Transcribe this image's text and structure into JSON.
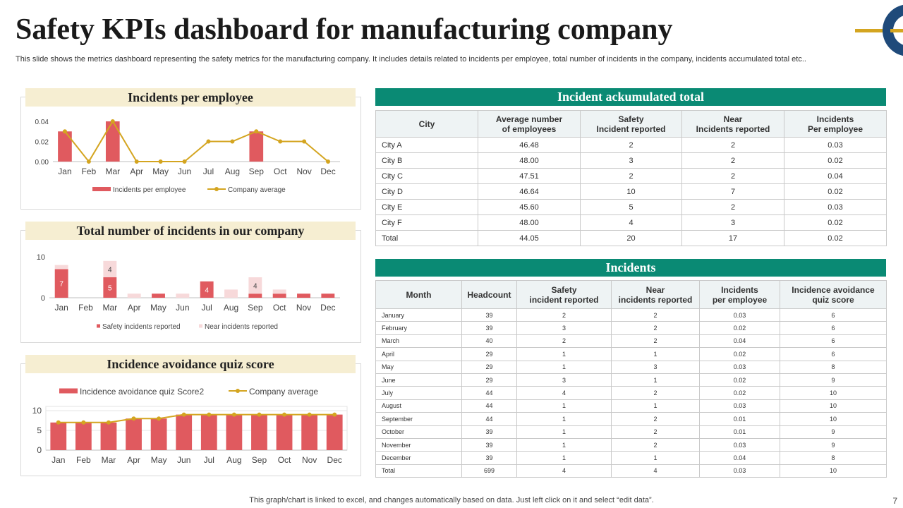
{
  "header": {
    "title": "Safety KPIs dashboard for manufacturing company",
    "subtitle": "This slide shows the metrics dashboard representing the safety metrics for the manufacturing company. It includes details related to incidents per employee, total number of incidents in the company, incidents accumulated total etc.."
  },
  "colors": {
    "bar": "#e05a5f",
    "bar_light": "#f7d9da",
    "line": "#d4a520",
    "teal": "#0a8a74",
    "panel_head": "#f6eed2"
  },
  "panels": {
    "p1_title": "Incidents per employee",
    "p2_title": "Total number of incidents in our company",
    "p3_title": "Incidence avoidance quiz score"
  },
  "chart_data": [
    {
      "type": "bar",
      "title": "Incidents per employee",
      "categories": [
        "Jan",
        "Feb",
        "Mar",
        "Apr",
        "May",
        "Jun",
        "Jul",
        "Aug",
        "Sep",
        "Oct",
        "Nov",
        "Dec"
      ],
      "yticks": [
        "0.00",
        "0.02",
        "0.04"
      ],
      "ylim": [
        0,
        0.04
      ],
      "series": [
        {
          "name": "Incidents per employee",
          "kind": "bar",
          "values": [
            0.03,
            0,
            0.04,
            0,
            0,
            0,
            0,
            0,
            0.03,
            0,
            0,
            0
          ]
        },
        {
          "name": "Company average",
          "kind": "line",
          "values": [
            0.03,
            0,
            0.04,
            0,
            0,
            0,
            0.02,
            0.02,
            0.03,
            0.02,
            0.02,
            0
          ]
        }
      ]
    },
    {
      "type": "bar",
      "title": "Total number of incidents in our company",
      "categories": [
        "Jan",
        "Feb",
        "Mar",
        "Apr",
        "May",
        "Jun",
        "Jul",
        "Aug",
        "Sep",
        "Oct",
        "Nov",
        "Dec"
      ],
      "yticks": [
        "0",
        "10"
      ],
      "ylim": [
        0,
        10
      ],
      "stacked": true,
      "series": [
        {
          "name": "Safety incidents reported",
          "values": [
            7,
            0,
            5,
            0,
            1,
            0,
            4,
            0,
            1,
            1,
            1,
            1
          ],
          "labels": [
            "7",
            "",
            "5",
            "",
            "",
            "",
            "4",
            "",
            "",
            "",
            "",
            ""
          ]
        },
        {
          "name": "Near incidents reported",
          "values": [
            1,
            0,
            4,
            1,
            0,
            1,
            0,
            2,
            4,
            1,
            0,
            0
          ],
          "labels": [
            "",
            "",
            "4",
            "",
            "",
            "",
            "",
            "",
            "4",
            "",
            "",
            ""
          ]
        }
      ]
    },
    {
      "type": "bar",
      "title": "Incidence avoidance quiz score",
      "categories": [
        "Jan",
        "Feb",
        "Mar",
        "Apr",
        "May",
        "Jun",
        "Jul",
        "Aug",
        "Sep",
        "Oct",
        "Nov",
        "Dec"
      ],
      "yticks": [
        "0",
        "5",
        "10"
      ],
      "ylim": [
        0,
        10
      ],
      "series": [
        {
          "name": "Incidence avoidance quiz Score2",
          "kind": "bar",
          "values": [
            7,
            7,
            7,
            8,
            8,
            9,
            9,
            9,
            9,
            9,
            9,
            9
          ]
        },
        {
          "name": "Company average",
          "kind": "line",
          "values": [
            7,
            7,
            7,
            8,
            8,
            9,
            9,
            9,
            9,
            9,
            9,
            9
          ]
        }
      ]
    }
  ],
  "table1": {
    "title": "Incident ackumulated total",
    "headers": [
      [
        "City"
      ],
      [
        "Average number",
        "of employees"
      ],
      [
        "Safety",
        "Incident reported"
      ],
      [
        "Near",
        "Incidents reported"
      ],
      [
        "Incidents",
        "Per employee"
      ]
    ],
    "rows": [
      [
        "City A",
        "46.48",
        "2",
        "2",
        "0.03"
      ],
      [
        "City B",
        "48.00",
        "3",
        "2",
        "0.02"
      ],
      [
        "City C",
        "47.51",
        "2",
        "2",
        "0.04"
      ],
      [
        "City D",
        "46.64",
        "10",
        "7",
        "0.02"
      ],
      [
        "City E",
        "45.60",
        "5",
        "2",
        "0.03"
      ],
      [
        "City F",
        "48.00",
        "4",
        "3",
        "0.02"
      ],
      [
        "Total",
        "44.05",
        "20",
        "17",
        "0.02"
      ]
    ]
  },
  "table2": {
    "title": "Incidents",
    "headers": [
      [
        "Month"
      ],
      [
        "Headcount"
      ],
      [
        "Safety",
        "incident reported"
      ],
      [
        "Near",
        "incidents reported"
      ],
      [
        "Incidents",
        "per employee"
      ],
      [
        "Incidence avoidance",
        "quiz score"
      ]
    ],
    "rows": [
      [
        "January",
        "39",
        "2",
        "2",
        "0.03",
        "6"
      ],
      [
        "February",
        "39",
        "3",
        "2",
        "0.02",
        "6"
      ],
      [
        "March",
        "40",
        "2",
        "2",
        "0.04",
        "6"
      ],
      [
        "April",
        "29",
        "1",
        "1",
        "0.02",
        "6"
      ],
      [
        "May",
        "29",
        "1",
        "3",
        "0.03",
        "8"
      ],
      [
        "June",
        "29",
        "3",
        "1",
        "0.02",
        "9"
      ],
      [
        "July",
        "44",
        "4",
        "2",
        "0.02",
        "10"
      ],
      [
        "August",
        "44",
        "1",
        "1",
        "0.03",
        "10"
      ],
      [
        "September",
        "44",
        "1",
        "2",
        "0.01",
        "10"
      ],
      [
        "October",
        "39",
        "1",
        "2",
        "0.01",
        "9"
      ],
      [
        "November",
        "39",
        "1",
        "2",
        "0.03",
        "9"
      ],
      [
        "December",
        "39",
        "1",
        "1",
        "0.04",
        "8"
      ],
      [
        "Total",
        "699",
        "4",
        "4",
        "0.03",
        "10"
      ]
    ]
  },
  "footer": {
    "note": "This graph/chart is linked to excel, and changes automatically based on data. Just left click on it and select “edit data”.",
    "page": "7"
  }
}
